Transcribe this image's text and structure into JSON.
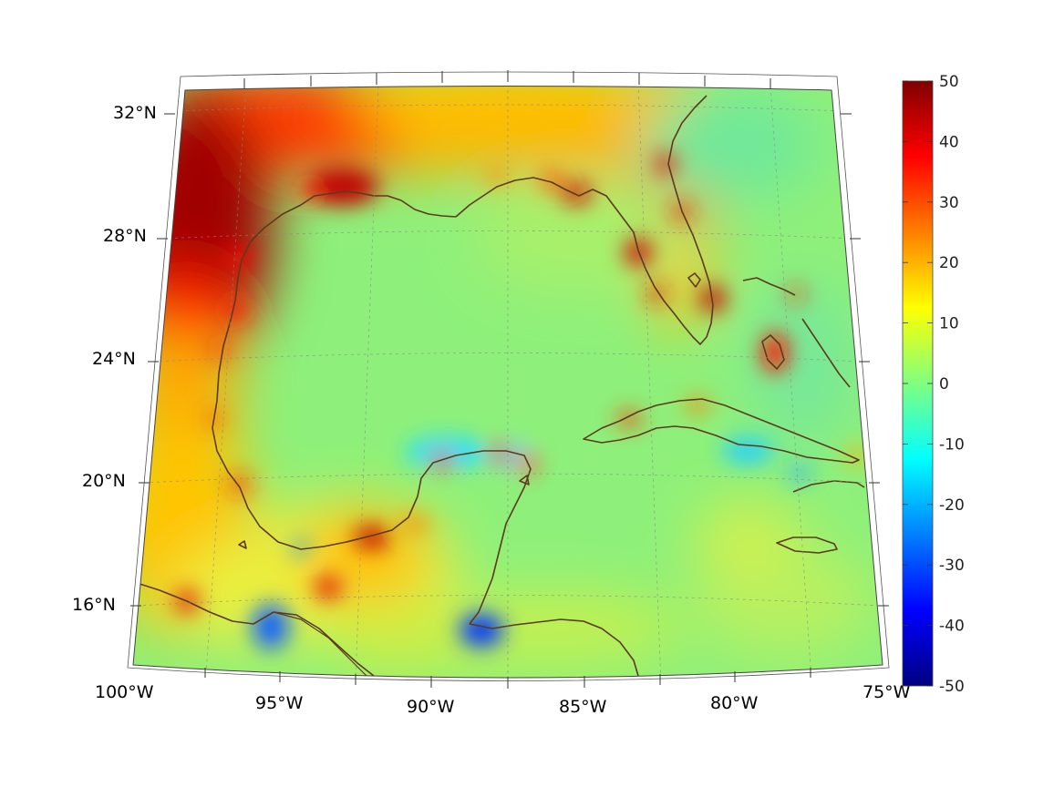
{
  "map": {
    "projection": "conic",
    "lon_range": [
      -100,
      -75
    ],
    "lat_range": [
      14,
      33
    ],
    "grid": true,
    "coastline_color": "#5c3a1e",
    "lon_labels": [
      "100°W",
      "95°W",
      "90°W",
      "85°W",
      "80°W",
      "75°W"
    ],
    "lat_labels": [
      "32°N",
      "28°N",
      "24°N",
      "20°N",
      "16°N"
    ],
    "lon_ticks": [
      -100,
      -95,
      -90,
      -85,
      -80,
      -75
    ],
    "lat_ticks": [
      32,
      28,
      24,
      20,
      16
    ],
    "colormap": "jet",
    "dominant_field_value": 4,
    "highlights": [
      {
        "region": "west Texas / NE Mexico inland",
        "lon": -99,
        "lat": 27,
        "value": 50
      },
      {
        "region": "north Gulf coast inland",
        "lon": -92,
        "lat": 31,
        "value": 35
      },
      {
        "region": "Louisiana coast",
        "lon": -93,
        "lat": 29.5,
        "value": 45
      },
      {
        "region": "Florida peninsula",
        "lon": -81.5,
        "lat": 28,
        "value": 25
      },
      {
        "region": "southern Mexico",
        "lon": -97,
        "lat": 18,
        "value": 18
      },
      {
        "region": "Gulf of Honduras",
        "lon": -88.3,
        "lat": 15.2,
        "value": -40
      },
      {
        "region": "Gulf of Tehuantepec",
        "lon": -95.3,
        "lat": 15.8,
        "value": -35
      },
      {
        "region": "north of Yucatan",
        "lon": -90.5,
        "lat": 21.5,
        "value": -10
      },
      {
        "region": "south of Cuba",
        "lon": -80,
        "lat": 21,
        "value": -12
      }
    ]
  },
  "colorbar": {
    "min": -50,
    "max": 50,
    "ticks": [
      "50",
      "40",
      "30",
      "20",
      "10",
      "0",
      "-10",
      "-20",
      "-30",
      "-40",
      "-50"
    ]
  }
}
